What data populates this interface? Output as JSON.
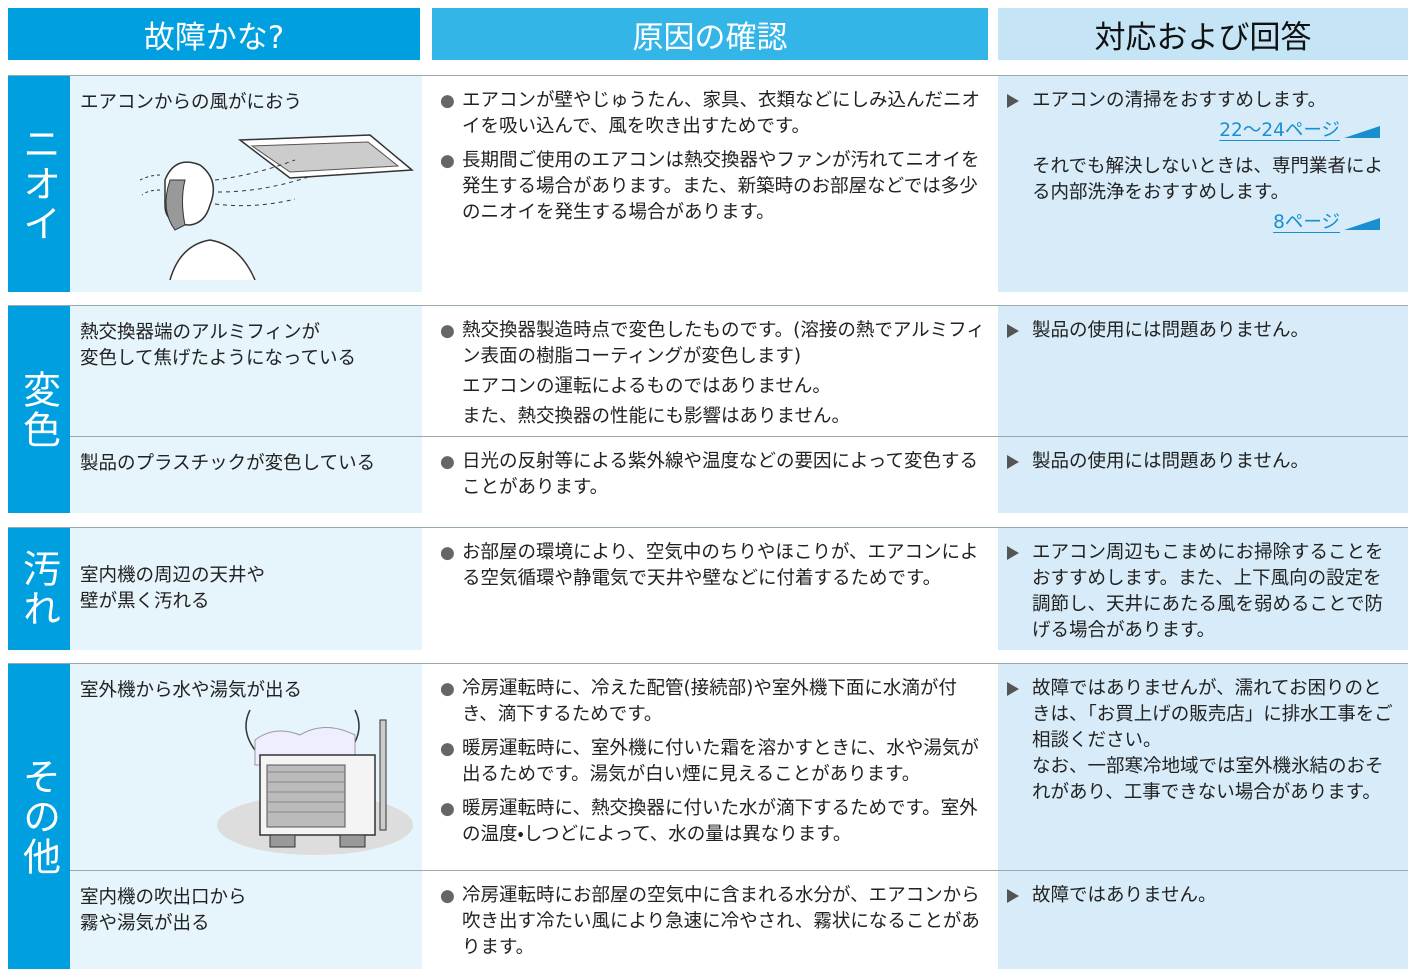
{
  "header": [
    "故障かな?",
    "原因の確認",
    "対応および回答"
  ],
  "sections": [
    {
      "label": "ニオイ",
      "rows": [
        {
          "symptom": "エアコンからの風がにおう",
          "causes": [
            {
              "bullet": "エアコンが壁やじゅうたん、家具、衣類などにしみ込んだニオイを吸い込んで、風を吹き出すためです。"
            },
            {
              "bullet": "長期間ご使用のエアコンは熱交換器やファンが汚れてニオイを発生する場合があります。また、新築時のお部屋などでは多少のニオイを発生する場合があります。"
            }
          ],
          "answer": [
            {
              "text": "エアコンの清掃をおすすめします。"
            },
            {
              "link": "22〜24ページ"
            },
            {
              "text": "それでも解決しないときは、専門業者による内部洗浄をおすすめします。"
            },
            {
              "link": "8ページ"
            }
          ]
        }
      ]
    },
    {
      "label": "変色",
      "rows": [
        {
          "symptom": "熱交換器端のアルミフィンが\n変色して焦げたようになっている",
          "causes": [
            {
              "bullet": "熱交換器製造時点で変色したものです。(溶接の熱でアルミフィン表面の樹脂コーティングが変色します)"
            },
            {
              "text": "エアコンの運転によるものではありません。"
            },
            {
              "text": "また、熱交換器の性能にも影響はありません。"
            }
          ],
          "answer": [
            {
              "text": "製品の使用には問題ありません。"
            }
          ]
        },
        {
          "symptom": "製品のプラスチックが変色している",
          "causes": [
            {
              "bullet": "日光の反射等による紫外線や温度などの要因によって変色することがあります。"
            }
          ],
          "answer": [
            {
              "text": "製品の使用には問題ありません。"
            }
          ]
        }
      ]
    },
    {
      "label": "汚れ",
      "rows": [
        {
          "symptom": "室内機の周辺の天井や\n壁が黒く汚れる",
          "causes": [
            {
              "bullet": "お部屋の環境により、空気中のちりやほこりが、エアコンによる空気循環や静電気で天井や壁などに付着するためです。"
            }
          ],
          "answer": [
            {
              "text": "エアコン周辺もこまめにお掃除することをおすすめします。また、上下風向の設定を調節し、天井にあたる風を弱めることで防げる場合があります。"
            }
          ]
        }
      ]
    },
    {
      "label": "その他",
      "rows": [
        {
          "symptom": "室外機から水や湯気が出る",
          "causes": [
            {
              "bullet": "冷房運転時に、冷えた配管(接続部)や室外機下面に水滴が付き、滴下するためです。"
            },
            {
              "bullet": "暖房運転時に、室外機に付いた霜を溶かすときに、水や湯気が出るためです。湯気が白い煙に見えることがあります。"
            },
            {
              "bullet": "暖房運転時に、熱交換器に付いた水が滴下するためです。室外の温度・しつどによって、水の量は異なります。"
            }
          ],
          "answer": [
            {
              "text": "故障ではありませんが、濡れてお困りのときは、「お買上げの販売店」に排水工事をご相談ください。\nなお、一部寒冷地域では室外機氷結のおそれがあり、工事できない場合があります。"
            }
          ]
        },
        {
          "symptom": "室内機の吹出口から\n霧や湯気が出る",
          "causes": [
            {
              "bullet": "冷房運転時にお部屋の空気中に含まれる水分が、エアコンから吹き出す冷たい風により急速に冷やされ、霧状になることがあります。"
            }
          ],
          "answer": [
            {
              "text": "故障ではありません。"
            }
          ]
        }
      ]
    }
  ]
}
